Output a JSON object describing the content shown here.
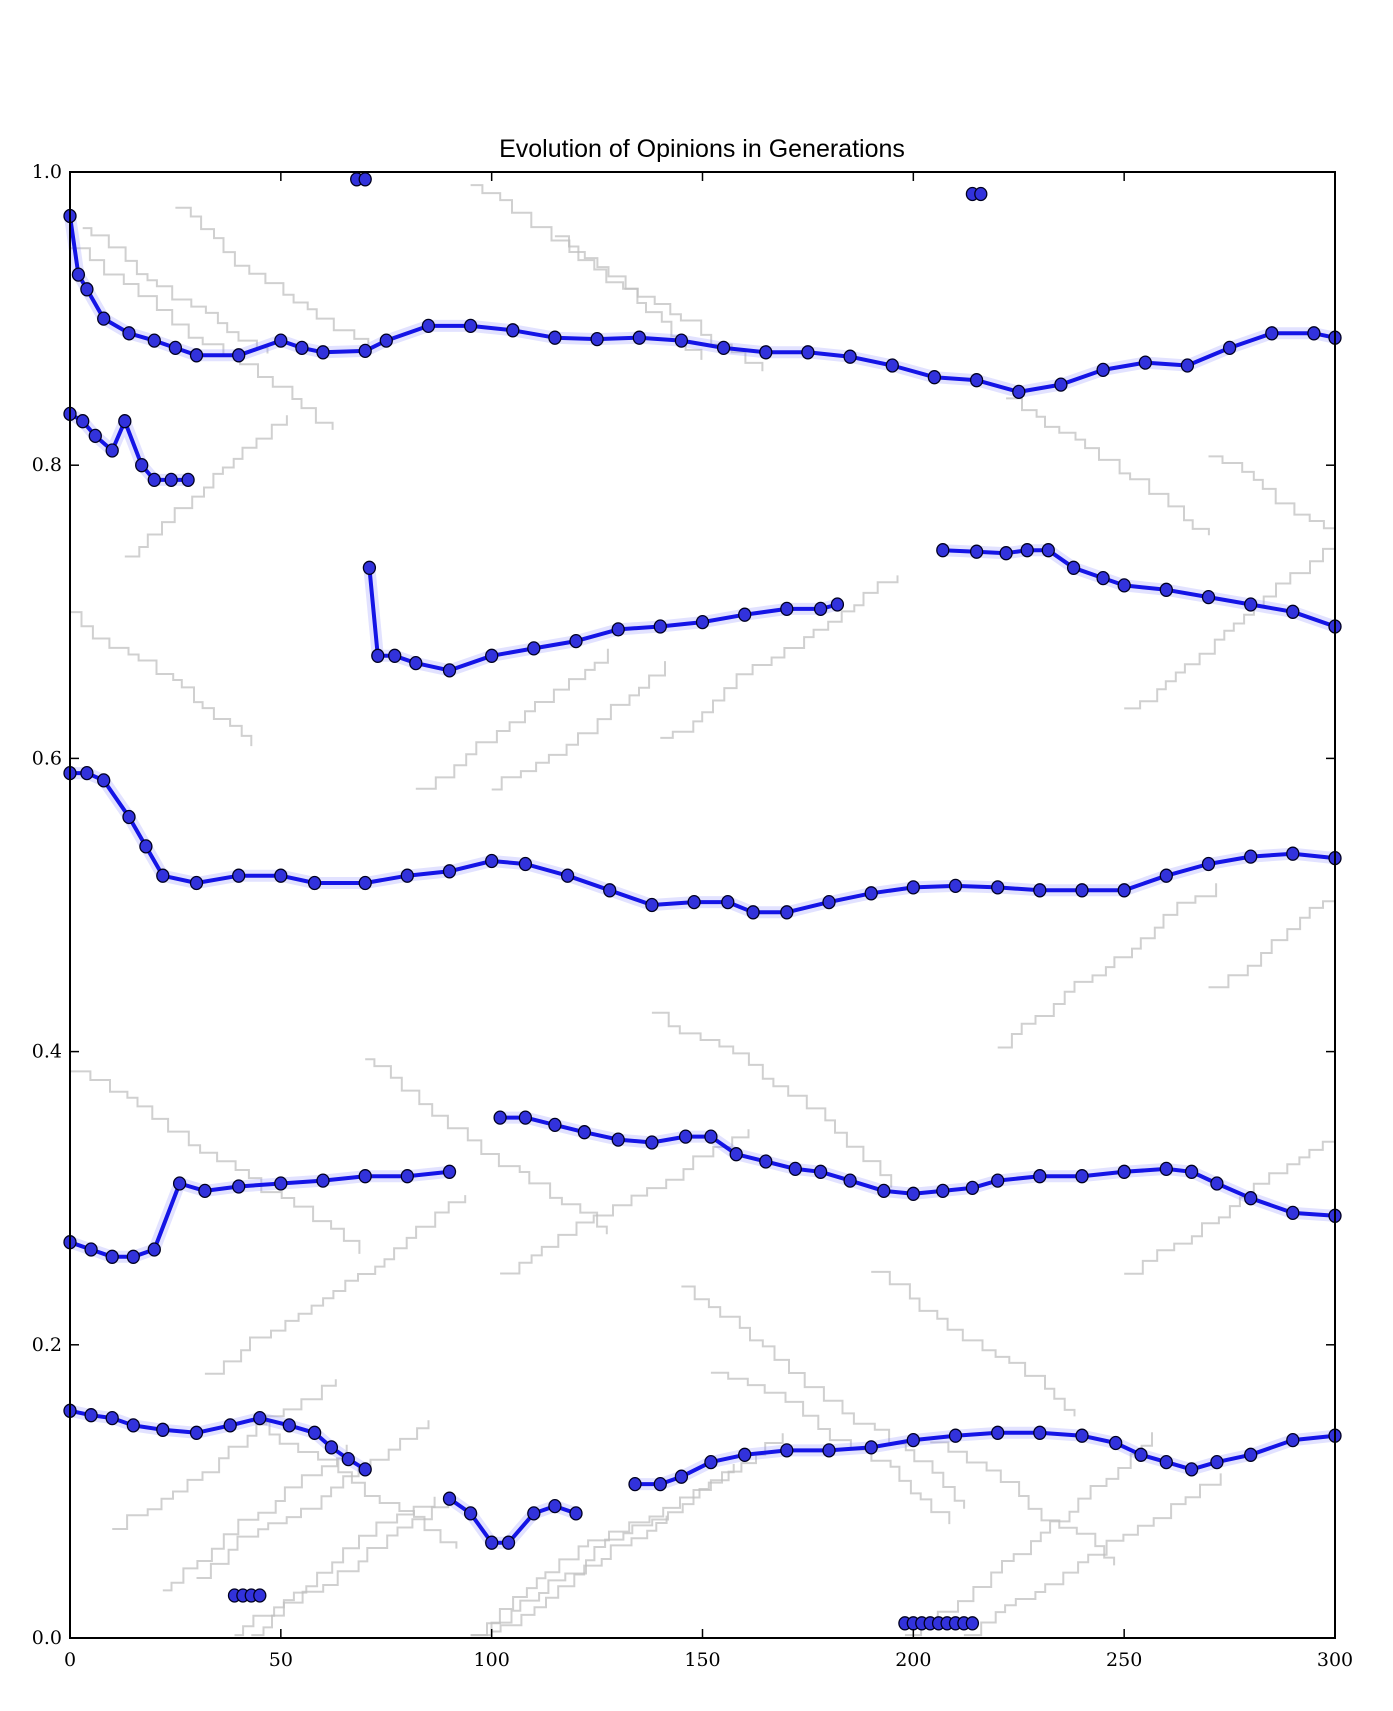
{
  "chart_data": {
    "type": "line",
    "title": "Evolution of Opinions in Generations",
    "xlabel": "",
    "ylabel": "",
    "xlim": [
      0,
      300
    ],
    "ylim": [
      0.0,
      1.0
    ],
    "x_ticks": [
      0,
      50,
      100,
      150,
      200,
      250,
      300
    ],
    "x_tick_labels": [
      "0",
      "50",
      "100",
      "150",
      "200",
      "250",
      "300"
    ],
    "y_ticks": [
      0.0,
      0.2,
      0.4,
      0.6,
      0.8,
      1.0
    ],
    "y_tick_labels": [
      "0.0",
      "0.2",
      "0.4",
      "0.6",
      "0.8",
      "1.0"
    ],
    "grid": false,
    "legend": "none",
    "colors": {
      "series": "#1414e6",
      "marker_fill": "#3232dc",
      "marker_edge": "#000020",
      "background_traces": "#c0c0c0",
      "band": "#8c8cff"
    },
    "series": [
      {
        "points": [
          [
            0,
            0.97
          ],
          [
            2,
            0.93
          ],
          [
            4,
            0.92
          ],
          [
            8,
            0.9
          ],
          [
            14,
            0.89
          ],
          [
            20,
            0.885
          ],
          [
            25,
            0.88
          ],
          [
            30,
            0.875
          ],
          [
            40,
            0.875
          ],
          [
            50,
            0.885
          ],
          [
            55,
            0.88
          ],
          [
            60,
            0.877
          ],
          [
            70,
            0.878
          ],
          [
            75,
            0.885
          ],
          [
            85,
            0.895
          ],
          [
            95,
            0.895
          ],
          [
            105,
            0.892
          ],
          [
            115,
            0.887
          ],
          [
            125,
            0.886
          ],
          [
            135,
            0.887
          ],
          [
            145,
            0.885
          ],
          [
            155,
            0.88
          ],
          [
            165,
            0.877
          ],
          [
            175,
            0.877
          ],
          [
            185,
            0.874
          ],
          [
            195,
            0.868
          ],
          [
            205,
            0.86
          ],
          [
            215,
            0.858
          ],
          [
            225,
            0.85
          ],
          [
            235,
            0.855
          ],
          [
            245,
            0.865
          ],
          [
            255,
            0.87
          ],
          [
            265,
            0.868
          ],
          [
            275,
            0.88
          ],
          [
            285,
            0.89
          ],
          [
            295,
            0.89
          ],
          [
            300,
            0.887
          ]
        ]
      },
      {
        "points": [
          [
            0,
            0.835
          ],
          [
            3,
            0.83
          ],
          [
            6,
            0.82
          ],
          [
            10,
            0.81
          ],
          [
            13,
            0.83
          ],
          [
            17,
            0.8
          ],
          [
            20,
            0.79
          ],
          [
            24,
            0.79
          ],
          [
            28,
            0.79
          ]
        ]
      },
      {
        "points": [
          [
            71,
            0.73
          ],
          [
            73,
            0.67
          ],
          [
            77,
            0.67
          ],
          [
            82,
            0.665
          ],
          [
            90,
            0.66
          ],
          [
            100,
            0.67
          ],
          [
            110,
            0.675
          ],
          [
            120,
            0.68
          ],
          [
            130,
            0.688
          ],
          [
            140,
            0.69
          ],
          [
            150,
            0.693
          ],
          [
            160,
            0.698
          ],
          [
            170,
            0.702
          ],
          [
            178,
            0.702
          ],
          [
            182,
            0.705
          ]
        ]
      },
      {
        "points": [
          [
            207,
            0.742
          ],
          [
            215,
            0.741
          ],
          [
            222,
            0.74
          ],
          [
            227,
            0.742
          ],
          [
            232,
            0.742
          ],
          [
            238,
            0.73
          ],
          [
            245,
            0.723
          ],
          [
            250,
            0.718
          ],
          [
            260,
            0.715
          ],
          [
            270,
            0.71
          ],
          [
            280,
            0.705
          ],
          [
            290,
            0.7
          ],
          [
            300,
            0.69
          ]
        ]
      },
      {
        "points": [
          [
            0,
            0.59
          ],
          [
            4,
            0.59
          ],
          [
            8,
            0.585
          ],
          [
            14,
            0.56
          ],
          [
            18,
            0.54
          ],
          [
            22,
            0.52
          ],
          [
            30,
            0.515
          ],
          [
            40,
            0.52
          ],
          [
            50,
            0.52
          ],
          [
            58,
            0.515
          ],
          [
            70,
            0.515
          ],
          [
            80,
            0.52
          ],
          [
            90,
            0.523
          ],
          [
            100,
            0.53
          ],
          [
            108,
            0.528
          ],
          [
            118,
            0.52
          ],
          [
            128,
            0.51
          ],
          [
            138,
            0.5
          ],
          [
            148,
            0.502
          ],
          [
            156,
            0.502
          ],
          [
            162,
            0.495
          ],
          [
            170,
            0.495
          ],
          [
            180,
            0.502
          ],
          [
            190,
            0.508
          ],
          [
            200,
            0.512
          ],
          [
            210,
            0.513
          ],
          [
            220,
            0.512
          ],
          [
            230,
            0.51
          ],
          [
            240,
            0.51
          ],
          [
            250,
            0.51
          ],
          [
            260,
            0.52
          ],
          [
            270,
            0.528
          ],
          [
            280,
            0.533
          ],
          [
            290,
            0.535
          ],
          [
            300,
            0.532
          ]
        ]
      },
      {
        "points": [
          [
            0,
            0.27
          ],
          [
            5,
            0.265
          ],
          [
            10,
            0.26
          ],
          [
            15,
            0.26
          ],
          [
            20,
            0.265
          ],
          [
            26,
            0.31
          ],
          [
            32,
            0.305
          ],
          [
            40,
            0.308
          ],
          [
            50,
            0.31
          ],
          [
            60,
            0.312
          ],
          [
            70,
            0.315
          ],
          [
            80,
            0.315
          ],
          [
            90,
            0.318
          ]
        ]
      },
      {
        "points": [
          [
            102,
            0.355
          ],
          [
            108,
            0.355
          ],
          [
            115,
            0.35
          ],
          [
            122,
            0.345
          ],
          [
            130,
            0.34
          ],
          [
            138,
            0.338
          ],
          [
            146,
            0.342
          ],
          [
            152,
            0.342
          ],
          [
            158,
            0.33
          ],
          [
            165,
            0.325
          ],
          [
            172,
            0.32
          ],
          [
            178,
            0.318
          ],
          [
            185,
            0.312
          ],
          [
            193,
            0.305
          ],
          [
            200,
            0.303
          ],
          [
            207,
            0.305
          ],
          [
            214,
            0.307
          ],
          [
            220,
            0.312
          ],
          [
            230,
            0.315
          ],
          [
            240,
            0.315
          ],
          [
            250,
            0.318
          ],
          [
            260,
            0.32
          ],
          [
            266,
            0.318
          ],
          [
            272,
            0.31
          ],
          [
            280,
            0.3
          ],
          [
            290,
            0.29
          ],
          [
            300,
            0.288
          ]
        ]
      },
      {
        "points": [
          [
            0,
            0.155
          ],
          [
            5,
            0.152
          ],
          [
            10,
            0.15
          ],
          [
            15,
            0.145
          ],
          [
            22,
            0.142
          ],
          [
            30,
            0.14
          ],
          [
            38,
            0.145
          ],
          [
            45,
            0.15
          ],
          [
            52,
            0.145
          ],
          [
            58,
            0.14
          ],
          [
            62,
            0.13
          ],
          [
            66,
            0.122
          ],
          [
            70,
            0.115
          ]
        ]
      },
      {
        "points": [
          [
            134,
            0.105
          ],
          [
            140,
            0.105
          ],
          [
            145,
            0.11
          ],
          [
            152,
            0.12
          ],
          [
            160,
            0.125
          ],
          [
            170,
            0.128
          ],
          [
            180,
            0.128
          ],
          [
            190,
            0.13
          ],
          [
            200,
            0.135
          ],
          [
            210,
            0.138
          ],
          [
            220,
            0.14
          ],
          [
            230,
            0.14
          ],
          [
            240,
            0.138
          ],
          [
            248,
            0.133
          ],
          [
            254,
            0.125
          ],
          [
            260,
            0.12
          ],
          [
            266,
            0.115
          ],
          [
            272,
            0.12
          ],
          [
            280,
            0.125
          ],
          [
            290,
            0.135
          ],
          [
            300,
            0.138
          ]
        ]
      },
      {
        "points": [
          [
            39,
            0.029
          ],
          [
            41,
            0.029
          ],
          [
            43,
            0.029
          ],
          [
            45,
            0.029
          ]
        ]
      },
      {
        "points": [
          [
            198,
            0.01
          ],
          [
            200,
            0.01
          ],
          [
            202,
            0.01
          ],
          [
            204,
            0.01
          ],
          [
            206,
            0.01
          ],
          [
            208,
            0.01
          ],
          [
            210,
            0.01
          ],
          [
            212,
            0.01
          ],
          [
            214,
            0.01
          ]
        ]
      },
      {
        "points": [
          [
            68,
            0.995
          ],
          [
            70,
            0.995
          ]
        ]
      },
      {
        "points": [
          [
            214,
            0.985
          ],
          [
            216,
            0.985
          ]
        ]
      },
      {
        "points": [
          [
            90,
            0.095
          ],
          [
            95,
            0.085
          ],
          [
            100,
            0.065
          ],
          [
            104,
            0.065
          ],
          [
            110,
            0.085
          ],
          [
            115,
            0.09
          ],
          [
            120,
            0.085
          ]
        ]
      }
    ]
  }
}
